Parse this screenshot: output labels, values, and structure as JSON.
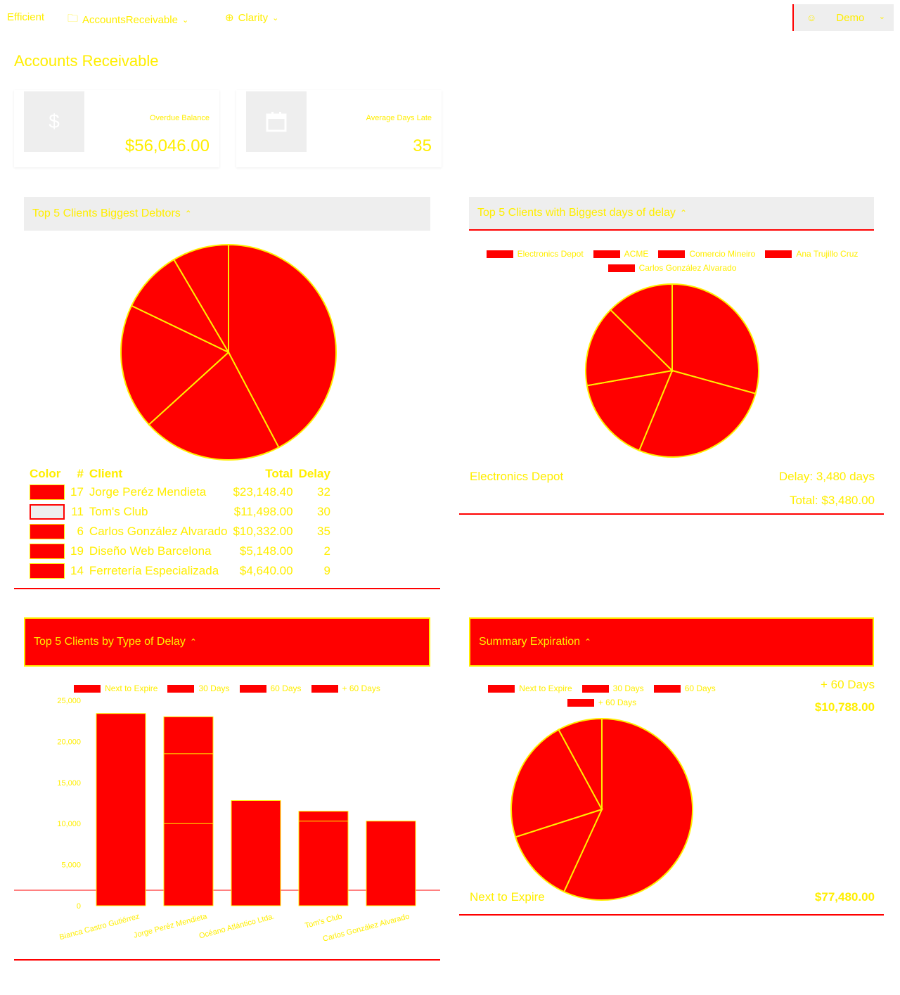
{
  "header": {
    "brand": "Efficient",
    "breadcrumb": [
      {
        "icon": "folder-icon",
        "label": "AccountsReceivable"
      },
      {
        "icon": "globe-icon",
        "label": "Clarity"
      }
    ],
    "user": {
      "icon": "user-icon",
      "label": "Demo"
    }
  },
  "page": {
    "title": "Accounts Receivable"
  },
  "kpis": [
    {
      "icon": "dollar-icon",
      "label": "Overdue Balance",
      "value": "$56,046.00"
    },
    {
      "icon": "calendar-icon",
      "label": "Average Days Late",
      "value": "35"
    }
  ],
  "debtors_card": {
    "title": "Top 5 Clients Biggest Debtors",
    "table": {
      "headers": [
        "Color",
        "#",
        "Client",
        "Total",
        "Delay"
      ],
      "rows": [
        {
          "id": "17",
          "client": "Jorge Peréz Mendieta",
          "total": "$23,148.40",
          "delay": "32"
        },
        {
          "id": "11",
          "client": "Tom's Club",
          "total": "$11,498.00",
          "delay": "30"
        },
        {
          "id": "6",
          "client": "Carlos González Alvarado",
          "total": "$10,332.00",
          "delay": "35"
        },
        {
          "id": "19",
          "client": "Diseño Web Barcelona",
          "total": "$5,148.00",
          "delay": "2"
        },
        {
          "id": "14",
          "client": "Ferretería Especializada",
          "total": "$4,640.00",
          "delay": "9"
        }
      ]
    }
  },
  "delay_card": {
    "title": "Top 5 Clients with Biggest days of delay",
    "footer": {
      "name": "Electronics Depot",
      "delay": "Delay: 3,480 days",
      "total": "Total: $3,480.00"
    }
  },
  "type_card": {
    "title": "Top 5 Clients by Type of Delay"
  },
  "summary_card": {
    "title": "Summary Expiration",
    "top_label": "+ 60 Days",
    "top_value": "$10,788.00",
    "bottom_label": "Next to Expire",
    "bottom_value": "$77,480.00"
  },
  "chart_data": [
    {
      "type": "pie",
      "title": "Top 5 Clients Biggest Debtors",
      "labels": [
        "Jorge Peréz Mendieta",
        "Tom's Club",
        "Carlos González Alvarado",
        "Diseño Web Barcelona",
        "Ferretería Especializada"
      ],
      "values": [
        23148.4,
        11498.0,
        10332.0,
        5148.0,
        4640.0
      ]
    },
    {
      "type": "pie",
      "title": "Top 5 Clients with Biggest days of delay",
      "labels": [
        "Electronics Depot",
        "ACME",
        "Comercio Mineiro",
        "Ana Trujillo Cruz",
        "Carlos González Alvarado"
      ],
      "values": [
        3480,
        3200,
        1900,
        1800,
        1500
      ],
      "legend": "top"
    },
    {
      "type": "bar",
      "title": "Top 5 Clients by Type of Delay",
      "categories": [
        "Bianca Castro Gutiérrez",
        "Jorge Peréz Mendieta",
        "Océano Atlántico Ltda.",
        "Tom's Club",
        "Carlos González Alvarado"
      ],
      "series_names": [
        "Next to Expire",
        "30 Days",
        "60 Days",
        "+ 60 Days"
      ],
      "values": [
        23400,
        23000,
        12800,
        11500,
        10300
      ],
      "segment_lines": [
        [],
        [
          18500,
          10000
        ],
        [],
        [
          10300
        ],
        []
      ],
      "ylim": [
        0,
        25000
      ],
      "yticks": [
        "0",
        "5,000",
        "10,000",
        "15,000",
        "20,000",
        "25,000"
      ],
      "legend": "top"
    },
    {
      "type": "pie",
      "title": "Summary Expiration",
      "labels": [
        "Next to Expire",
        "30 Days",
        "60 Days",
        "+ 60 Days"
      ],
      "values": [
        77480,
        18000,
        30000,
        10788
      ],
      "legend": "top"
    }
  ]
}
